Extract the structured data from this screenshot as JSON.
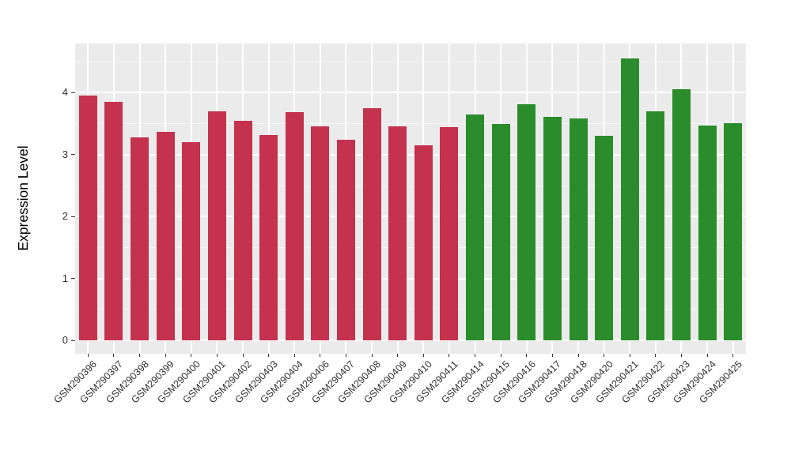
{
  "chart_data": {
    "type": "bar",
    "title": "",
    "ylabel": "Expression Level",
    "xlabel": "",
    "ylim": [
      0,
      4.78
    ],
    "yticks": [
      "0",
      "1",
      "2",
      "3",
      "4"
    ],
    "ytick_values": [
      0,
      1,
      2,
      3,
      4
    ],
    "yminor_values": [
      0.5,
      1.5,
      2.5,
      3.5,
      4.5
    ],
    "grid": "on",
    "legend": "none",
    "categories": [
      "GSM290396",
      "GSM290397",
      "GSM290398",
      "GSM290399",
      "GSM290400",
      "GSM290401",
      "GSM290402",
      "GSM290403",
      "GSM290404",
      "GSM290406",
      "GSM290407",
      "GSM290408",
      "GSM290409",
      "GSM290410",
      "GSM290411",
      "GSM290414",
      "GSM290415",
      "GSM290416",
      "GSM290417",
      "GSM290418",
      "GSM290420",
      "GSM290421",
      "GSM290422",
      "GSM290423",
      "GSM290424",
      "GSM290425"
    ],
    "values": [
      3.95,
      3.85,
      3.28,
      3.37,
      3.2,
      3.7,
      3.55,
      3.31,
      3.68,
      3.46,
      3.24,
      3.75,
      3.46,
      3.15,
      3.45,
      3.65,
      3.49,
      3.82,
      3.61,
      3.59,
      3.3,
      4.55,
      3.7,
      4.05,
      3.47,
      3.51
    ],
    "bar_colors": [
      "#C4324E",
      "#C4324E",
      "#C4324E",
      "#C4324E",
      "#C4324E",
      "#C4324E",
      "#C4324E",
      "#C4324E",
      "#C4324E",
      "#C4324E",
      "#C4324E",
      "#C4324E",
      "#C4324E",
      "#C4324E",
      "#C4324E",
      "#2B8C2B",
      "#2B8C2B",
      "#2B8C2B",
      "#2B8C2B",
      "#2B8C2B",
      "#2B8C2B",
      "#2B8C2B",
      "#2B8C2B",
      "#2B8C2B",
      "#2B8C2B",
      "#2B8C2B"
    ],
    "colors": {
      "red_group": "#C4324E",
      "green_group": "#2B8C2B",
      "panel_background": "#EBEBEB",
      "gridline_major": "#FFFFFF",
      "gridline_minor": "#F5F5F5",
      "tick_mark": "#333333",
      "tick_text": "#303030",
      "axis_title_text": "#000000"
    }
  }
}
